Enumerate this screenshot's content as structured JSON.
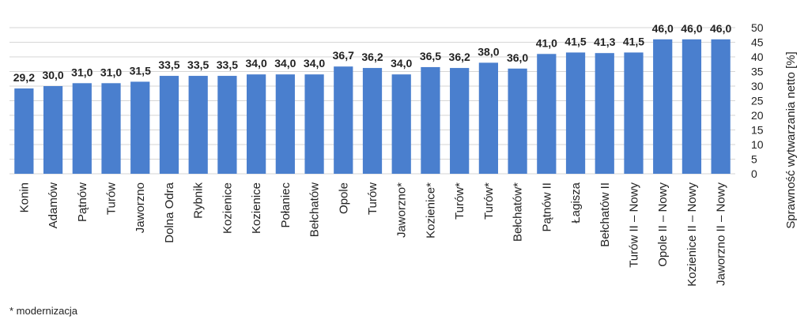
{
  "chart_data": {
    "type": "bar",
    "title": "",
    "xlabel": "",
    "ylabel": "Sprawność wytwarzania netto [%]",
    "ylim": [
      0,
      50
    ],
    "yticks": [
      0,
      5,
      10,
      15,
      20,
      25,
      30,
      35,
      40,
      45,
      50
    ],
    "grid": true,
    "y_axis_side": "right",
    "bar_color": "#4a7fce",
    "categories": [
      "Konin",
      "Adamów",
      "Pątnów",
      "Turów",
      "Jaworzno",
      "Dolna Odra",
      "Rybnik",
      "Kozienice",
      "Kozienice",
      "Połaniec",
      "Bełchatów",
      "Opole",
      "Turów",
      "Jaworzno*",
      "Kozienice*",
      "Turów*",
      "Turów*",
      "Bełchatów*",
      "Pątnów II",
      "Łagisza",
      "Bełchatów II",
      "Turów II – Nowy",
      "Opole II – Nowy",
      "Kozienice II – Nowy",
      "Jaworzno II – Nowy"
    ],
    "values": [
      29.2,
      30.0,
      31.0,
      31.0,
      31.5,
      33.5,
      33.5,
      33.5,
      34.0,
      34.0,
      34.0,
      36.7,
      36.2,
      34.0,
      36.5,
      36.2,
      38.0,
      36.0,
      41.0,
      41.5,
      41.3,
      41.5,
      46.0,
      46.0,
      46.0
    ],
    "value_labels": [
      "29,2",
      "30,0",
      "31,0",
      "31,0",
      "31,5",
      "33,5",
      "33,5",
      "33,5",
      "34,0",
      "34,0",
      "34,0",
      "36,7",
      "36,2",
      "34,0",
      "36,5",
      "36,2",
      "38,0",
      "36,0",
      "41,0",
      "41,5",
      "41,3",
      "41,5",
      "46,0",
      "46,0",
      "46,0"
    ]
  },
  "footnote": "* modernizacja"
}
